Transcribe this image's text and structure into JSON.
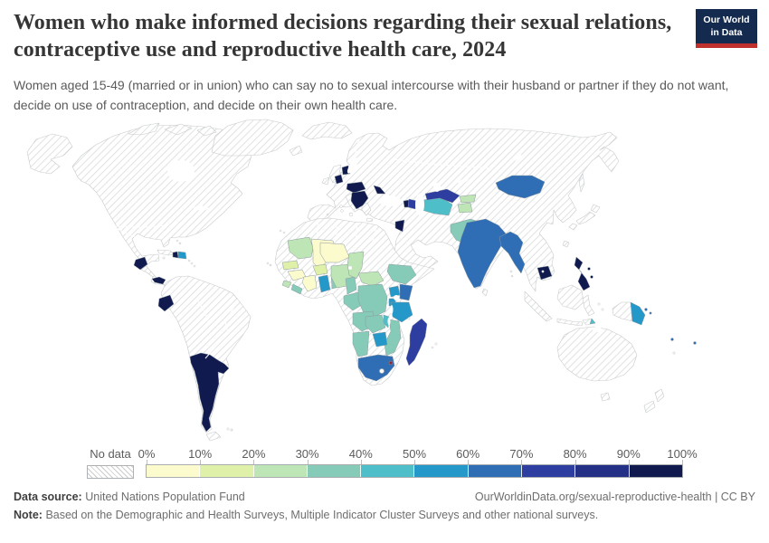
{
  "header": {
    "title": "Women who make informed decisions regarding their sexual relations, contraceptive use and reproductive health care, 2024",
    "subtitle": "Women aged 15-49 (married or in union) who can say no to sexual intercourse with their husband or partner if they do not want, decide on use of contraception, and decide on their own health care.",
    "logo_line1": "Our World",
    "logo_line2": "in Data"
  },
  "legend": {
    "no_data_label": "No data",
    "ticks": [
      "0%",
      "10%",
      "20%",
      "30%",
      "40%",
      "50%",
      "60%",
      "70%",
      "80%",
      "90%",
      "100%"
    ],
    "bin_colors": [
      "#fbfbcd",
      "#dff0a8",
      "#bde5b5",
      "#85cbb7",
      "#4ebfc9",
      "#2498c8",
      "#2f6db4",
      "#2d3da0",
      "#243085",
      "#111a4e"
    ]
  },
  "footer": {
    "data_source_label": "Data source:",
    "data_source": "United Nations Population Fund",
    "link": "OurWorldinData.org/sexual-reproductive-health | CC BY",
    "note_label": "Note:",
    "note": "Based on the Demographic and Health Surveys, Multiple Indicator Cluster Surveys and other national surveys."
  },
  "map": {
    "no_data_style": "diagonal-hatch",
    "country_colors": {
      "guatemala": "#111a4e",
      "panama": "#111a4e",
      "ecuador": "#111a4e",
      "argentina": "#111a4e",
      "haiti": "#111a4e",
      "dominican-republic": "#2498c8",
      "netherlands": "#111a4e",
      "denmark": "#111a4e",
      "central-europe": "#111a4e",
      "balkans": "#111a4e",
      "moldova": "#111a4e",
      "jordan": "#111a4e",
      "armenia": "#111a4e",
      "azerbaijan": "#2d3da0",
      "turkmenistan": "#4ebfc9",
      "uzbekistan": "#2d3da0",
      "kyrgyzstan": "#bde5b5",
      "tajikistan": "#bde5b5",
      "pakistan": "#85cbb7",
      "india": "#2f6db4",
      "myanmar": "#2f6db4",
      "mongolia": "#2f6db4",
      "cambodia": "#111a4e",
      "philippines": "#111a4e",
      "png": "#2498c8",
      "timor": "#4ebfc9",
      "solomon": "#2f6db4",
      "pacific-islands": "#2f6db4",
      "mauritania": "#bde5b5",
      "mali": "#fbfbcd",
      "senegal": "#dff0a8",
      "guinea": "#fbfbcd",
      "sierra-leone": "#bde5b5",
      "liberia": "#85cbb7",
      "cote-divoire": "#fbfbcd",
      "burkina-faso": "#dff0a8",
      "ghana": "#2498c8",
      "togo-benin": "#85cbb7",
      "niger": "#fbfbcd",
      "nigeria": "#bde5b5",
      "chad": "#bde5b5",
      "car": "#bde5b5",
      "cameroon": "#85cbb7",
      "gabon-congo": "#85cbb7",
      "drc": "#85cbb7",
      "ethiopia": "#85cbb7",
      "uganda": "#2498c8",
      "kenya": "#2f6db4",
      "rwanda-burundi": "#2498c8",
      "tanzania": "#2498c8",
      "angola": "#85cbb7",
      "zambia": "#85cbb7",
      "malawi": "#4ebfc9",
      "mozambique": "#85cbb7",
      "zimbabwe": "#2498c8",
      "namibia": "#85cbb7",
      "south-africa": "#2f6db4",
      "madagascar": "#2d3da0",
      "eswatini": "#8b2439"
    }
  },
  "chart_data": {
    "type": "choropleth",
    "title": "Women who make informed decisions regarding their sexual relations, contraceptive use and reproductive health care, 2024",
    "unit": "%",
    "legend_position": "bottom",
    "bins": [
      {
        "range": "0-10%",
        "color": "#fbfbcd"
      },
      {
        "range": "10-20%",
        "color": "#dff0a8"
      },
      {
        "range": "20-30%",
        "color": "#bde5b5"
      },
      {
        "range": "30-40%",
        "color": "#85cbb7"
      },
      {
        "range": "40-50%",
        "color": "#4ebfc9"
      },
      {
        "range": "50-60%",
        "color": "#2498c8"
      },
      {
        "range": "60-70%",
        "color": "#2f6db4"
      },
      {
        "range": "70-80%",
        "color": "#2d3da0"
      },
      {
        "range": "80-90%",
        "color": "#243085"
      },
      {
        "range": "90-100%",
        "color": "#111a4e"
      }
    ],
    "countries": [
      {
        "name": "Guatemala",
        "range": "90-100%"
      },
      {
        "name": "Panama",
        "range": "90-100%"
      },
      {
        "name": "Ecuador",
        "range": "90-100%"
      },
      {
        "name": "Argentina",
        "range": "90-100%"
      },
      {
        "name": "Uruguay",
        "range": "90-100%"
      },
      {
        "name": "Haiti",
        "range": "90-100%"
      },
      {
        "name": "Netherlands",
        "range": "90-100%"
      },
      {
        "name": "Denmark",
        "range": "90-100%"
      },
      {
        "name": "Austria/Hungary region",
        "range": "90-100%"
      },
      {
        "name": "Balkans (Croatia-Serbia-Albania region)",
        "range": "90-100%"
      },
      {
        "name": "Moldova",
        "range": "90-100%"
      },
      {
        "name": "Jordan",
        "range": "90-100%"
      },
      {
        "name": "Armenia",
        "range": "90-100%"
      },
      {
        "name": "Cambodia",
        "range": "90-100%"
      },
      {
        "name": "Philippines",
        "range": "90-100%"
      },
      {
        "name": "Azerbaijan",
        "range": "70-80%"
      },
      {
        "name": "Uzbekistan",
        "range": "70-80%"
      },
      {
        "name": "Madagascar",
        "range": "70-80%"
      },
      {
        "name": "Mongolia",
        "range": "60-70%"
      },
      {
        "name": "India",
        "range": "60-70%"
      },
      {
        "name": "Bangladesh",
        "range": "60-70%"
      },
      {
        "name": "Myanmar",
        "range": "60-70%"
      },
      {
        "name": "Kenya",
        "range": "60-70%"
      },
      {
        "name": "South Africa",
        "range": "60-70%"
      },
      {
        "name": "Solomon Islands",
        "range": "60-70%"
      },
      {
        "name": "Fiji/Vanuatu",
        "range": "60-70%"
      },
      {
        "name": "Dominican Republic",
        "range": "50-60%"
      },
      {
        "name": "Ghana",
        "range": "50-60%"
      },
      {
        "name": "Uganda",
        "range": "50-60%"
      },
      {
        "name": "Rwanda",
        "range": "50-60%"
      },
      {
        "name": "Burundi",
        "range": "50-60%"
      },
      {
        "name": "Tanzania",
        "range": "50-60%"
      },
      {
        "name": "Zimbabwe",
        "range": "50-60%"
      },
      {
        "name": "Papua New Guinea",
        "range": "50-60%"
      },
      {
        "name": "Turkmenistan",
        "range": "40-50%"
      },
      {
        "name": "Malawi",
        "range": "40-50%"
      },
      {
        "name": "Timor-Leste",
        "range": "40-50%"
      },
      {
        "name": "Pakistan",
        "range": "30-40%"
      },
      {
        "name": "Ethiopia",
        "range": "30-40%"
      },
      {
        "name": "Cameroon",
        "range": "30-40%"
      },
      {
        "name": "Gabon",
        "range": "30-40%"
      },
      {
        "name": "Congo",
        "range": "30-40%"
      },
      {
        "name": "Democratic Republic of Congo",
        "range": "30-40%"
      },
      {
        "name": "Liberia",
        "range": "30-40%"
      },
      {
        "name": "Angola",
        "range": "30-40%"
      },
      {
        "name": "Zambia",
        "range": "30-40%"
      },
      {
        "name": "Mozambique",
        "range": "30-40%"
      },
      {
        "name": "Namibia",
        "range": "30-40%"
      },
      {
        "name": "Togo",
        "range": "30-40%"
      },
      {
        "name": "Benin",
        "range": "30-40%"
      },
      {
        "name": "Mauritania",
        "range": "20-30%"
      },
      {
        "name": "Nigeria",
        "range": "20-30%"
      },
      {
        "name": "Chad",
        "range": "20-30%"
      },
      {
        "name": "Central African Republic",
        "range": "20-30%"
      },
      {
        "name": "Sierra Leone",
        "range": "20-30%"
      },
      {
        "name": "Kyrgyzstan",
        "range": "20-30%"
      },
      {
        "name": "Tajikistan",
        "range": "20-30%"
      },
      {
        "name": "Senegal",
        "range": "10-20%"
      },
      {
        "name": "Burkina Faso",
        "range": "10-20%"
      },
      {
        "name": "Mali",
        "range": "0-10%"
      },
      {
        "name": "Guinea",
        "range": "0-10%"
      },
      {
        "name": "Côte d'Ivoire",
        "range": "0-10%"
      },
      {
        "name": "Niger",
        "range": "0-10%"
      }
    ]
  }
}
